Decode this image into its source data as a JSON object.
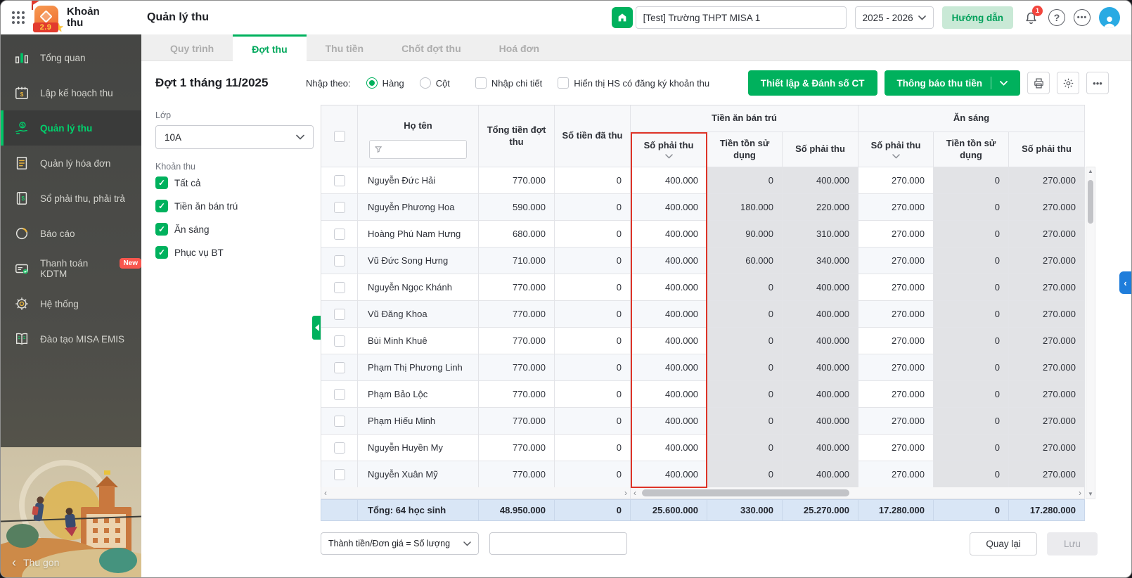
{
  "colors": {
    "primary": "#00b15d",
    "primary_text": "#00a85c",
    "sidebar_active": "#00d26d",
    "red_highlight": "#de3428",
    "badge_red": "#f2453d",
    "avatar_blue": "#29aae3",
    "totals_bg": "#d9e6f6"
  },
  "app": {
    "name": "Khoản thu",
    "version": "2.9",
    "page_title": "Quản lý thu"
  },
  "header": {
    "school": "[Test] Trường THPT MISA 1",
    "year": "2025 - 2026",
    "guide": "Hướng dẫn",
    "badge": "1",
    "icons": [
      "home-icon",
      "notification-bell-icon",
      "help-icon",
      "more-icon",
      "avatar"
    ]
  },
  "sidebar": {
    "collapse_label": "Thu gọn",
    "items": [
      {
        "label": "Tổng quan",
        "icon": "bar-chart-icon",
        "active": false
      },
      {
        "label": "Lập kế hoạch thu",
        "icon": "calendar-dollar-icon",
        "active": false
      },
      {
        "label": "Quản lý thu",
        "icon": "hand-dollar-icon",
        "active": true
      },
      {
        "label": "Quản lý hóa đơn",
        "icon": "invoice-icon",
        "active": false
      },
      {
        "label": "Sổ phải thu, phải trả",
        "icon": "ledger-dollar-icon",
        "active": false
      },
      {
        "label": "Báo cáo",
        "icon": "pie-chart-icon",
        "active": false
      },
      {
        "label": "Thanh toán KDTM",
        "icon": "card-check-icon",
        "active": false,
        "badge": "New"
      },
      {
        "label": "Hệ thống",
        "icon": "gear-icon",
        "active": false
      },
      {
        "label": "Đào tạo MISA EMIS",
        "icon": "open-book-icon",
        "active": false
      }
    ]
  },
  "tabs": [
    {
      "label": "Quy trình",
      "active": false
    },
    {
      "label": "Đợt thu",
      "active": true
    },
    {
      "label": "Thu tiền",
      "active": false
    },
    {
      "label": "Chốt đợt thu",
      "active": false
    },
    {
      "label": "Hoá đơn",
      "active": false
    }
  ],
  "toolbar": {
    "title": "Đợt 1 tháng 11/2025",
    "input_by": "Nhập theo:",
    "radios": [
      {
        "label": "Hàng",
        "checked": true
      },
      {
        "label": "Cột",
        "checked": false
      }
    ],
    "checkboxes": [
      {
        "label": "Nhập chi tiết",
        "checked": false
      },
      {
        "label": "Hiển thị HS có đăng ký khoản thu",
        "checked": false
      }
    ],
    "setup_button": "Thiết lập & Đánh số CT",
    "notify_button": "Thông báo thu tiền"
  },
  "filters": {
    "class_label": "Lớp",
    "class_value": "10A",
    "group_label": "Khoản thu",
    "options": [
      {
        "label": "Tất cả",
        "checked": true
      },
      {
        "label": "Tiền ăn bán trú",
        "checked": true
      },
      {
        "label": "Ăn sáng",
        "checked": true
      },
      {
        "label": "Phục vụ BT",
        "checked": true
      }
    ]
  },
  "table": {
    "columns": {
      "name": "Họ tên",
      "total": "Tổng tiền đợt thu",
      "collected": "Số tiền đã thu"
    },
    "groups": [
      {
        "label": "Tiền ăn bán trú",
        "cols": [
          "Số phải thu",
          "Tiền tồn sử dụng",
          "Số phải thu"
        ]
      },
      {
        "label": "Ăn sáng",
        "cols": [
          "Số phải thu",
          "Tiền tồn sử dụng",
          "Số phải thu"
        ]
      }
    ],
    "rows": [
      {
        "name": "Nguyễn Đức Hải",
        "values": [
          "770.000",
          "0",
          "400.000",
          "0",
          "400.000",
          "270.000",
          "0",
          "270.000"
        ]
      },
      {
        "name": "Nguyễn Phương Hoa",
        "values": [
          "590.000",
          "0",
          "400.000",
          "180.000",
          "220.000",
          "270.000",
          "0",
          "270.000"
        ]
      },
      {
        "name": "Hoàng Phú Nam Hưng",
        "values": [
          "680.000",
          "0",
          "400.000",
          "90.000",
          "310.000",
          "270.000",
          "0",
          "270.000"
        ]
      },
      {
        "name": "Vũ Đức Song Hưng",
        "values": [
          "710.000",
          "0",
          "400.000",
          "60.000",
          "340.000",
          "270.000",
          "0",
          "270.000"
        ]
      },
      {
        "name": "Nguyễn Ngọc Khánh",
        "values": [
          "770.000",
          "0",
          "400.000",
          "0",
          "400.000",
          "270.000",
          "0",
          "270.000"
        ]
      },
      {
        "name": "Vũ Đăng Khoa",
        "values": [
          "770.000",
          "0",
          "400.000",
          "0",
          "400.000",
          "270.000",
          "0",
          "270.000"
        ]
      },
      {
        "name": "Bùi Minh Khuê",
        "values": [
          "770.000",
          "0",
          "400.000",
          "0",
          "400.000",
          "270.000",
          "0",
          "270.000"
        ]
      },
      {
        "name": "Phạm Thị Phương Linh",
        "values": [
          "770.000",
          "0",
          "400.000",
          "0",
          "400.000",
          "270.000",
          "0",
          "270.000"
        ]
      },
      {
        "name": "Phạm Bảo Lộc",
        "values": [
          "770.000",
          "0",
          "400.000",
          "0",
          "400.000",
          "270.000",
          "0",
          "270.000"
        ]
      },
      {
        "name": "Phạm Hiếu Minh",
        "values": [
          "770.000",
          "0",
          "400.000",
          "0",
          "400.000",
          "270.000",
          "0",
          "270.000"
        ]
      },
      {
        "name": "Nguyễn Huyền My",
        "values": [
          "770.000",
          "0",
          "400.000",
          "0",
          "400.000",
          "270.000",
          "0",
          "270.000"
        ]
      },
      {
        "name": "Nguyễn Xuân Mỹ",
        "values": [
          "770.000",
          "0",
          "400.000",
          "0",
          "400.000",
          "270.000",
          "0",
          "270.000"
        ]
      }
    ],
    "totals": {
      "label": "Tổng: 64 học sinh",
      "values": [
        "48.950.000",
        "0",
        "25.600.000",
        "330.000",
        "25.270.000",
        "17.280.000",
        "0",
        "17.280.000"
      ]
    }
  },
  "footer": {
    "formula": "Thành tiền/Đơn giá = Số lượng",
    "back": "Quay lại",
    "save": "Lưu"
  }
}
